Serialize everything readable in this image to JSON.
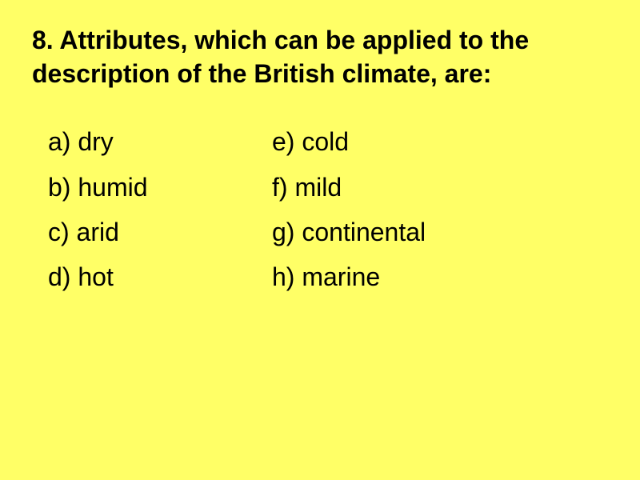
{
  "title": "8. Attributes, which can be applied to the description of the British climate, are:",
  "options_left": [
    {
      "label": "a) dry"
    },
    {
      "label": "b) humid"
    },
    {
      "label": "c) arid"
    },
    {
      "label": "d) hot"
    }
  ],
  "options_right": [
    {
      "label": "e) cold"
    },
    {
      "label": "f) mild"
    },
    {
      "label": "g) continental"
    },
    {
      "label": "h) marine"
    }
  ],
  "background_color": "#ffff66",
  "text_color": "#000000",
  "title_fontsize": 32,
  "option_fontsize": 32
}
